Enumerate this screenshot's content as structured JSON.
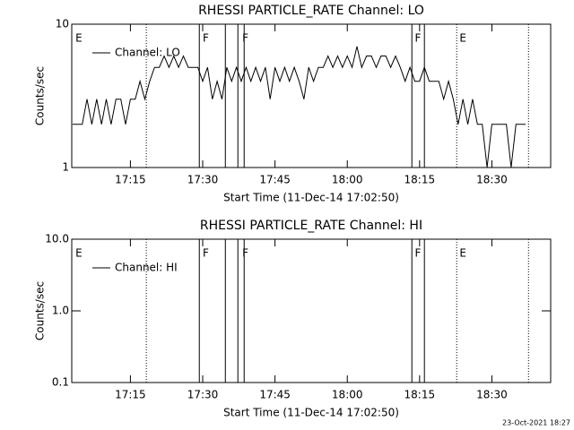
{
  "footer": "23-Oct-2021 18:27",
  "chart_data": [
    {
      "type": "line",
      "title": "RHESSI PARTICLE_RATE Channel: LO",
      "x_label": "Start Time (11-Dec-14 17:02:50)",
      "y_label": "Counts/sec",
      "log_y": true,
      "legend": "upper left",
      "xlim": [
        1022.83,
        1122.2
      ],
      "ylim": [
        1,
        10
      ],
      "yticks": [
        1,
        10
      ],
      "xticks": [
        {
          "value": 1035,
          "label": "17:15"
        },
        {
          "value": 1050,
          "label": "17:30"
        },
        {
          "value": 1065,
          "label": "17:45"
        },
        {
          "value": 1080,
          "label": "18:00"
        },
        {
          "value": 1095,
          "label": "18:15"
        },
        {
          "value": 1110,
          "label": "18:30"
        }
      ],
      "x": [
        1023,
        1024,
        1025,
        1026,
        1027,
        1028,
        1029,
        1030,
        1031,
        1032,
        1033,
        1034,
        1035,
        1036,
        1037,
        1038,
        1039,
        1040,
        1041,
        1042,
        1043,
        1044,
        1045,
        1046,
        1047,
        1048,
        1049,
        1050,
        1051,
        1052,
        1053,
        1054,
        1055,
        1056,
        1057,
        1058,
        1059,
        1060,
        1061,
        1062,
        1063,
        1064,
        1065,
        1066,
        1067,
        1068,
        1069,
        1070,
        1071,
        1072,
        1073,
        1074,
        1075,
        1076,
        1077,
        1078,
        1079,
        1080,
        1081,
        1082,
        1083,
        1084,
        1085,
        1086,
        1087,
        1088,
        1089,
        1090,
        1091,
        1092,
        1093,
        1094,
        1095,
        1096,
        1097,
        1098,
        1099,
        1100,
        1101,
        1102,
        1103,
        1104,
        1105,
        1106,
        1107,
        1108,
        1109,
        1110,
        1111,
        1112,
        1113,
        1114,
        1115,
        1116,
        1117
      ],
      "series": [
        {
          "name": "Channel: LO",
          "color": "#000000",
          "values": [
            2,
            2,
            2,
            3,
            2,
            3,
            2,
            3,
            2,
            3,
            3,
            2,
            3,
            3,
            4,
            3,
            4,
            5,
            5,
            6,
            5,
            6,
            5,
            6,
            5,
            5,
            5,
            4,
            5,
            3,
            4,
            3,
            5,
            4,
            5,
            4,
            5,
            4,
            5,
            4,
            5,
            3,
            5,
            4,
            5,
            4,
            5,
            4,
            3,
            5,
            4,
            5,
            5,
            6,
            5,
            6,
            5,
            6,
            5,
            7,
            5,
            6,
            6,
            5,
            6,
            6,
            5,
            6,
            5,
            4,
            5,
            4,
            4,
            5,
            4,
            4,
            4,
            3,
            4,
            3,
            2,
            3,
            2,
            3,
            2,
            2,
            1,
            2,
            2,
            2,
            2,
            1,
            2,
            2,
            2
          ]
        }
      ],
      "event_lines": [
        {
          "x": 1038.3,
          "style": "dotted"
        },
        {
          "x": 1049.3,
          "style": "solid"
        },
        {
          "x": 1054.7,
          "style": "solid"
        },
        {
          "x": 1057.3,
          "style": "solid"
        },
        {
          "x": 1058.6,
          "style": "solid"
        },
        {
          "x": 1093.4,
          "style": "solid"
        },
        {
          "x": 1096.0,
          "style": "solid"
        },
        {
          "x": 1102.7,
          "style": "dotted"
        },
        {
          "x": 1117.6,
          "style": "dotted"
        }
      ],
      "annotations": [
        {
          "text": "E",
          "x": 1023.6
        },
        {
          "text": "F",
          "x": 1050.0
        },
        {
          "text": "F",
          "x": 1058.2
        },
        {
          "text": "F",
          "x": 1094.0
        },
        {
          "text": "E",
          "x": 1103.3
        }
      ]
    },
    {
      "type": "line",
      "title": "RHESSI PARTICLE_RATE Channel: HI",
      "x_label": "Start Time (11-Dec-14 17:02:50)",
      "y_label": "Counts/sec",
      "log_y": true,
      "legend": "upper left",
      "xlim": [
        1022.83,
        1122.2
      ],
      "ylim": [
        0.1,
        10
      ],
      "yticks": [
        0.1,
        {
          "value": 1,
          "label": "1.0"
        },
        {
          "value": 10,
          "label": "10.0"
        }
      ],
      "xticks": [
        {
          "value": 1035,
          "label": "17:15"
        },
        {
          "value": 1050,
          "label": "17:30"
        },
        {
          "value": 1065,
          "label": "17:45"
        },
        {
          "value": 1080,
          "label": "18:00"
        },
        {
          "value": 1095,
          "label": "18:15"
        },
        {
          "value": 1110,
          "label": "18:30"
        }
      ],
      "x": [],
      "series": [
        {
          "name": "Channel: HI",
          "color": "#000000",
          "values": []
        }
      ],
      "event_lines": [
        {
          "x": 1038.3,
          "style": "dotted"
        },
        {
          "x": 1049.3,
          "style": "solid"
        },
        {
          "x": 1054.7,
          "style": "solid"
        },
        {
          "x": 1057.3,
          "style": "solid"
        },
        {
          "x": 1058.6,
          "style": "solid"
        },
        {
          "x": 1093.4,
          "style": "solid"
        },
        {
          "x": 1096.0,
          "style": "solid"
        },
        {
          "x": 1102.7,
          "style": "dotted"
        },
        {
          "x": 1117.6,
          "style": "dotted"
        }
      ],
      "annotations": [
        {
          "text": "E",
          "x": 1023.6
        },
        {
          "text": "F",
          "x": 1050.0
        },
        {
          "text": "F",
          "x": 1058.2
        },
        {
          "text": "F",
          "x": 1094.0
        },
        {
          "text": "E",
          "x": 1103.3
        }
      ]
    }
  ]
}
